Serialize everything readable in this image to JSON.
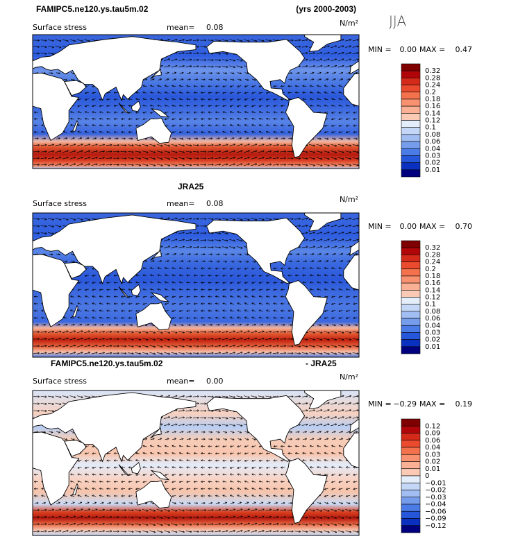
{
  "header": {
    "title": "FAMIPC5.ne120.ys.tau5m.02",
    "years": "(yrs 2000-2003)",
    "season": "JJA"
  },
  "panels": [
    {
      "variable": "Surface stress",
      "mean_label": "mean=",
      "mean": "0.08",
      "units": "N/m²",
      "min_label": "MIN =",
      "min": "0.00",
      "max_label": "MAX =",
      "max": "0.47",
      "colorbar": [
        "0.32",
        "0.28",
        "0.24",
        "0.2",
        "0.18",
        "0.16",
        "0.14",
        "0.12",
        "0.1",
        "0.08",
        "0.06",
        "0.04",
        "0.03",
        "0.02",
        "0.01"
      ]
    },
    {
      "title": "JRA25",
      "variable": "Surface stress",
      "mean_label": "mean=",
      "mean": "0.08",
      "units": "N/m²",
      "min_label": "MIN =",
      "min": "0.00",
      "max_label": "MAX =",
      "max": "0.70",
      "colorbar": [
        "0.32",
        "0.28",
        "0.24",
        "0.2",
        "0.18",
        "0.16",
        "0.14",
        "0.12",
        "0.1",
        "0.08",
        "0.06",
        "0.04",
        "0.03",
        "0.02",
        "0.01"
      ]
    },
    {
      "title": "FAMIPC5.ne120.ys.tau5m.02",
      "title_right": "- JRA25",
      "variable": "Surface stress",
      "mean_label": "mean=",
      "mean": "0.00",
      "units": "N/m²",
      "min_label": "MIN =",
      "min": "−0.29",
      "max_label": "MAX =",
      "max": "0.19",
      "colorbar": [
        "0.12",
        "0.09",
        "0.06",
        "0.04",
        "0.03",
        "0.02",
        "0.01",
        "0",
        "−0.01",
        "−0.02",
        "−0.03",
        "−0.04",
        "−0.06",
        "−0.09",
        "−0.12"
      ]
    }
  ]
}
